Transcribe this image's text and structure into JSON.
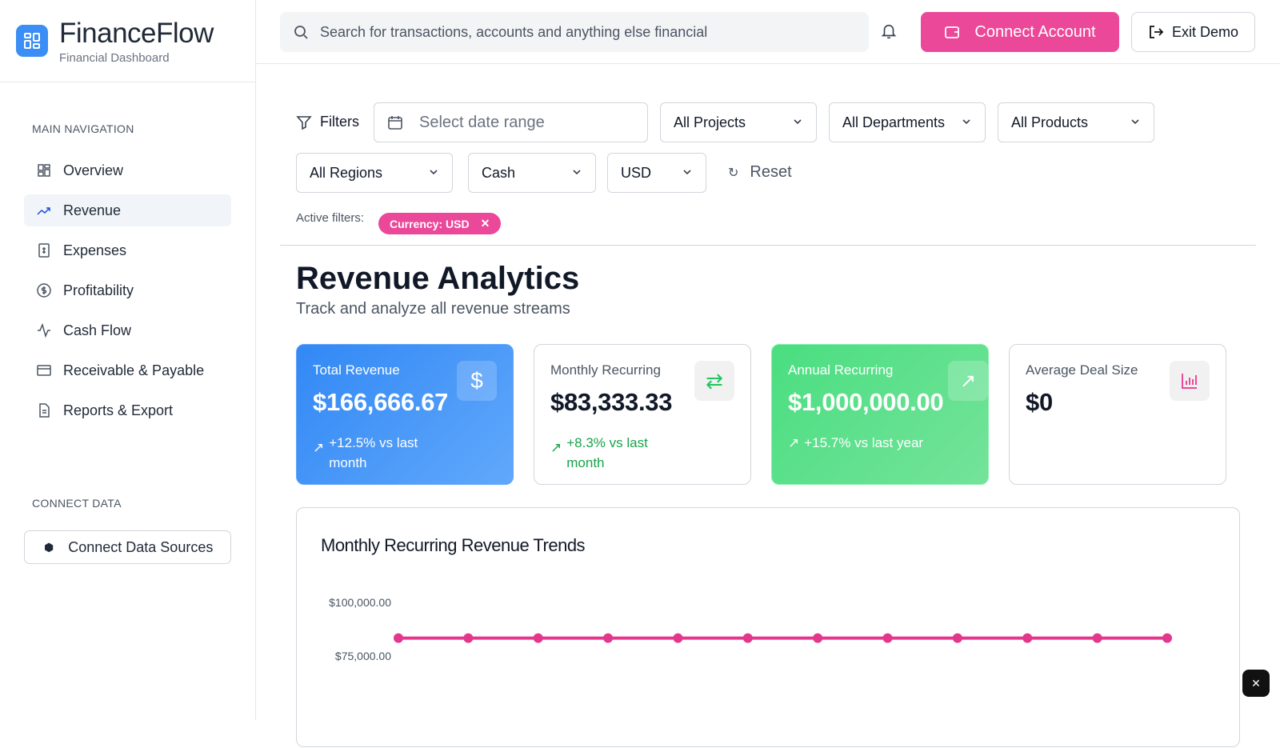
{
  "brand": {
    "title": "FinanceFlow",
    "subtitle": "Financial Dashboard"
  },
  "sidebar": {
    "main_nav_title": "MAIN NAVIGATION",
    "items": [
      {
        "label": "Overview",
        "icon": "grid-icon"
      },
      {
        "label": "Revenue",
        "icon": "trending-up-icon",
        "active": true
      },
      {
        "label": "Expenses",
        "icon": "receipt-icon"
      },
      {
        "label": "Profitability",
        "icon": "dollar-circle-icon"
      },
      {
        "label": "Cash Flow",
        "icon": "activity-icon"
      },
      {
        "label": "Receivable & Payable",
        "icon": "credit-card-icon"
      },
      {
        "label": "Reports & Export",
        "icon": "file-icon"
      }
    ],
    "connect_title": "CONNECT DATA",
    "connect_button": "Connect Data Sources"
  },
  "topbar": {
    "search_placeholder": "Search for transactions, accounts and anything else financial",
    "connect_button": "Connect Account",
    "exit_button": "Exit Demo"
  },
  "filters": {
    "label": "Filters",
    "date_placeholder": "Select date range",
    "projects": "All Projects",
    "departments": "All Departments",
    "products": "All Products",
    "regions": "All Regions",
    "account": "Cash",
    "currency": "USD",
    "reset": "Reset",
    "active_label": "Active filters:",
    "active_chip": "Currency: USD"
  },
  "page": {
    "title": "Revenue Analytics",
    "subtitle": "Track and analyze all revenue streams"
  },
  "cards": [
    {
      "label": "Total Revenue",
      "value": "$166,666.67",
      "change": "+12.5% vs last month",
      "icon": "dollar-icon"
    },
    {
      "label": "Monthly Recurring",
      "value": "$83,333.33",
      "change": "+8.3% vs last month",
      "icon": "repeat-icon"
    },
    {
      "label": "Annual Recurring",
      "value": "$1,000,000.00",
      "change": "+15.7% vs last year",
      "icon": "trending-up-icon"
    },
    {
      "label": "Average Deal Size",
      "value": "$0",
      "icon": "bar-chart-icon"
    }
  ],
  "colors": {
    "accent": "#ec4899",
    "blue": "#3b8ef5",
    "green": "#4ade80"
  },
  "chart_data": {
    "type": "line",
    "title": "Monthly Recurring Revenue Trends",
    "yticks": [
      "$100,000.00",
      "$75,000.00"
    ],
    "ylim": [
      50000,
      100000
    ],
    "values": [
      83333.33,
      83333.33,
      83333.33,
      83333.33,
      83333.33,
      83333.33,
      83333.33,
      83333.33,
      83333.33,
      83333.33,
      83333.33,
      83333.33
    ],
    "color": "#e3368d"
  }
}
